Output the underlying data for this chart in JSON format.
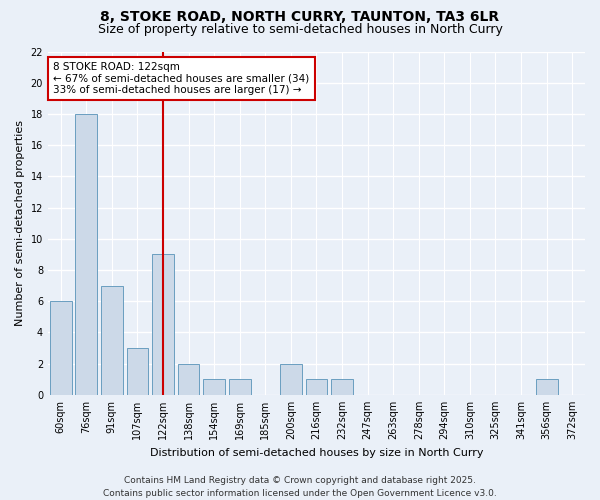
{
  "title": "8, STOKE ROAD, NORTH CURRY, TAUNTON, TA3 6LR",
  "subtitle": "Size of property relative to semi-detached houses in North Curry",
  "xlabel": "Distribution of semi-detached houses by size in North Curry",
  "ylabel": "Number of semi-detached properties",
  "categories": [
    "60sqm",
    "76sqm",
    "91sqm",
    "107sqm",
    "122sqm",
    "138sqm",
    "154sqm",
    "169sqm",
    "185sqm",
    "200sqm",
    "216sqm",
    "232sqm",
    "247sqm",
    "263sqm",
    "278sqm",
    "294sqm",
    "310sqm",
    "325sqm",
    "341sqm",
    "356sqm",
    "372sqm"
  ],
  "values": [
    6,
    18,
    7,
    3,
    9,
    2,
    1,
    1,
    0,
    2,
    1,
    1,
    0,
    0,
    0,
    0,
    0,
    0,
    0,
    1,
    0
  ],
  "bar_color": "#ccd9e8",
  "bar_edge_color": "#6a9ec0",
  "reference_line_x": 4,
  "reference_line_label": "8 STOKE ROAD: 122sqm",
  "annotation_line1": "← 67% of semi-detached houses are smaller (34)",
  "annotation_line2": "33% of semi-detached houses are larger (17) →",
  "vline_color": "#cc0000",
  "box_edge_color": "#cc0000",
  "ylim": [
    0,
    22
  ],
  "yticks": [
    0,
    2,
    4,
    6,
    8,
    10,
    12,
    14,
    16,
    18,
    20,
    22
  ],
  "footer_line1": "Contains HM Land Registry data © Crown copyright and database right 2025.",
  "footer_line2": "Contains public sector information licensed under the Open Government Licence v3.0.",
  "background_color": "#eaf0f8",
  "plot_bg_color": "#eaf0f8",
  "grid_color": "#ffffff",
  "title_fontsize": 10,
  "subtitle_fontsize": 9,
  "axis_fontsize": 8,
  "tick_fontsize": 7,
  "footer_fontsize": 6.5,
  "annotation_fontsize": 7.5
}
